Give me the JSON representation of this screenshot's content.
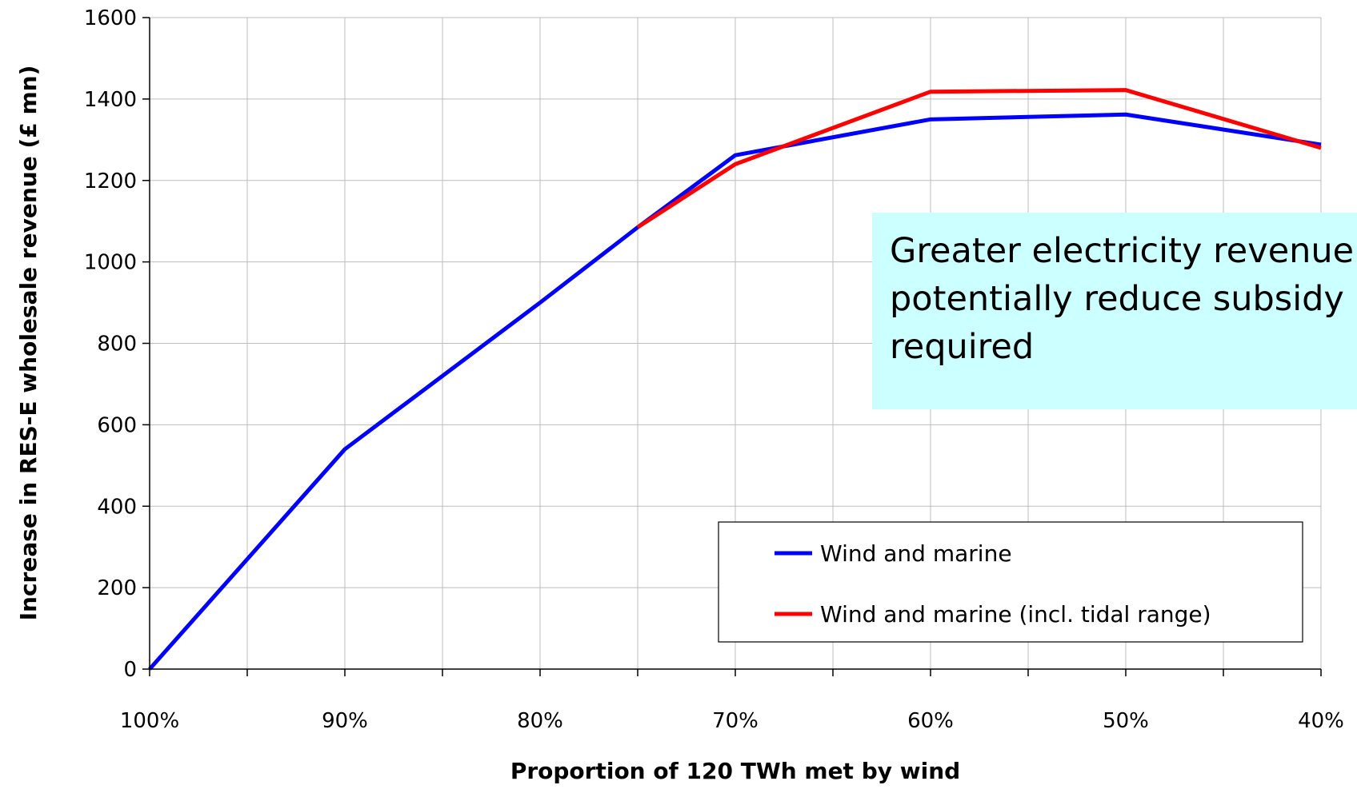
{
  "chart_data": {
    "type": "line",
    "title": "",
    "xlabel": "Proportion of 120 TWh met by wind",
    "ylabel": "Increase in RES-E wholesale revenue (£ mn)",
    "x_tick_labels": [
      "100%",
      "90%",
      "80%",
      "70%",
      "60%",
      "50%",
      "40%"
    ],
    "x_reversed": true,
    "xlim": [
      100,
      40
    ],
    "ylim": [
      0,
      1600
    ],
    "y_tick_values": [
      0,
      200,
      400,
      600,
      800,
      1000,
      1200,
      1400,
      1600
    ],
    "y_tick_labels": [
      "0",
      "200",
      "400",
      "600",
      "800",
      "1000",
      "1200",
      "1400",
      "1600"
    ],
    "grid": true,
    "legend_position": "bottom-right",
    "series": [
      {
        "name": "Wind and marine",
        "color": "#0000ff",
        "x": [
          100,
          90,
          80,
          75,
          70,
          60,
          50,
          40
        ],
        "y": [
          0,
          540,
          900,
          1085,
          1262,
          1350,
          1362,
          1288
        ]
      },
      {
        "name": "Wind and marine (incl. tidal range)",
        "color": "#ff0000",
        "x": [
          75,
          70,
          60,
          50,
          40
        ],
        "y": [
          1085,
          1240,
          1418,
          1422,
          1280
        ]
      }
    ],
    "annotation": {
      "lines": [
        "Greater electricity revenue",
        "potentially reduce subsidy",
        "required"
      ],
      "background": "#ccffff"
    }
  }
}
